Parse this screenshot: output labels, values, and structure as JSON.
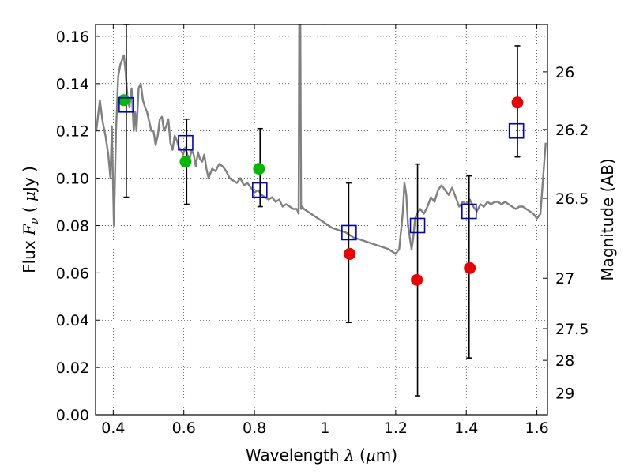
{
  "chart_data": {
    "type": "scatter",
    "xlabel_parts": [
      "Wavelength  ",
      "λ",
      " (",
      "μ",
      "m)"
    ],
    "ylabel_parts": [
      "Flux  ",
      "F",
      "ν",
      "  ( ",
      "μ",
      "Jy )"
    ],
    "y2label": "Magnitude (AB)",
    "xlim": [
      0.35,
      1.63
    ],
    "ylim": [
      0.0,
      0.165
    ],
    "x_ticks": [
      0.4,
      0.6,
      0.8,
      1.0,
      1.2,
      1.4,
      1.6
    ],
    "x_tick_labels": [
      "0.4",
      "0.6",
      "0.8",
      "1",
      "1.2",
      "1.4",
      "1.6"
    ],
    "y_ticks": [
      0.0,
      0.02,
      0.04,
      0.06,
      0.08,
      0.1,
      0.12,
      0.14,
      0.16
    ],
    "y_tick_labels": [
      "0.00",
      "0.02",
      "0.04",
      "0.06",
      "0.08",
      "0.10",
      "0.12",
      "0.14",
      "0.16"
    ],
    "y2_ticks": [
      {
        "label": "26",
        "flux": 0.145
      },
      {
        "label": "26.2",
        "flux": 0.1206
      },
      {
        "label": "26.5",
        "flux": 0.0915
      },
      {
        "label": "27",
        "flux": 0.0577
      },
      {
        "label": "27.5",
        "flux": 0.0364
      },
      {
        "label": "28",
        "flux": 0.023
      },
      {
        "label": "29",
        "flux": 0.0092
      }
    ],
    "grid": true,
    "colors": {
      "model": "#808080",
      "model_points": "#0000cc",
      "detection": "#00bb00",
      "nondetection": "#ee0000",
      "errorbar": "#000000"
    },
    "model_spectrum": {
      "x": [
        0.352,
        0.362,
        0.37,
        0.378,
        0.386,
        0.392,
        0.396,
        0.402,
        0.408,
        0.414,
        0.42,
        0.425,
        0.43,
        0.435,
        0.44,
        0.446,
        0.452,
        0.458,
        0.462,
        0.466,
        0.472,
        0.478,
        0.484,
        0.49,
        0.496,
        0.502,
        0.508,
        0.514,
        0.52,
        0.526,
        0.532,
        0.538,
        0.544,
        0.55,
        0.556,
        0.562,
        0.568,
        0.574,
        0.58,
        0.586,
        0.592,
        0.598,
        0.604,
        0.61,
        0.616,
        0.622,
        0.628,
        0.634,
        0.64,
        0.646,
        0.652,
        0.658,
        0.664,
        0.67,
        0.68,
        0.69,
        0.7,
        0.71,
        0.72,
        0.73,
        0.74,
        0.75,
        0.76,
        0.77,
        0.78,
        0.79,
        0.8,
        0.81,
        0.82,
        0.83,
        0.84,
        0.85,
        0.86,
        0.87,
        0.88,
        0.89,
        0.9,
        0.91,
        0.92,
        0.925,
        0.927,
        0.93,
        0.932,
        0.935,
        0.94,
        0.96,
        0.98,
        1.0,
        1.02,
        1.04,
        1.06,
        1.08,
        1.1,
        1.12,
        1.14,
        1.16,
        1.18,
        1.2,
        1.21,
        1.22,
        1.225,
        1.23,
        1.235,
        1.24,
        1.245,
        1.25,
        1.255,
        1.26,
        1.27,
        1.28,
        1.29,
        1.3,
        1.31,
        1.32,
        1.33,
        1.34,
        1.35,
        1.36,
        1.37,
        1.38,
        1.39,
        1.4,
        1.41,
        1.42,
        1.43,
        1.44,
        1.45,
        1.46,
        1.47,
        1.48,
        1.49,
        1.5,
        1.51,
        1.52,
        1.53,
        1.54,
        1.55,
        1.56,
        1.57,
        1.58,
        1.59,
        1.6,
        1.61,
        1.615,
        1.62,
        1.625
      ],
      "y": [
        0.12,
        0.133,
        0.124,
        0.118,
        0.11,
        0.1,
        0.122,
        0.08,
        0.12,
        0.143,
        0.148,
        0.15,
        0.152,
        0.145,
        0.135,
        0.13,
        0.138,
        0.12,
        0.128,
        0.12,
        0.138,
        0.14,
        0.133,
        0.13,
        0.128,
        0.124,
        0.12,
        0.12,
        0.114,
        0.118,
        0.125,
        0.126,
        0.12,
        0.122,
        0.125,
        0.115,
        0.112,
        0.118,
        0.116,
        0.113,
        0.112,
        0.11,
        0.113,
        0.11,
        0.108,
        0.112,
        0.11,
        0.105,
        0.111,
        0.108,
        0.107,
        0.11,
        0.104,
        0.1,
        0.104,
        0.103,
        0.106,
        0.105,
        0.103,
        0.1,
        0.099,
        0.098,
        0.1,
        0.097,
        0.098,
        0.096,
        0.094,
        0.095,
        0.093,
        0.092,
        0.091,
        0.092,
        0.09,
        0.091,
        0.088,
        0.089,
        0.088,
        0.087,
        0.087,
        0.085,
        0.165,
        0.165,
        0.087,
        0.088,
        0.087,
        0.085,
        0.083,
        0.081,
        0.079,
        0.078,
        0.077,
        0.075,
        0.074,
        0.073,
        0.072,
        0.071,
        0.07,
        0.068,
        0.07,
        0.085,
        0.098,
        0.093,
        0.08,
        0.075,
        0.07,
        0.075,
        0.083,
        0.085,
        0.087,
        0.085,
        0.088,
        0.092,
        0.09,
        0.095,
        0.097,
        0.095,
        0.093,
        0.096,
        0.092,
        0.088,
        0.09,
        0.089,
        0.091,
        0.088,
        0.086,
        0.089,
        0.088,
        0.09,
        0.089,
        0.09,
        0.09,
        0.089,
        0.09,
        0.089,
        0.088,
        0.087,
        0.088,
        0.088,
        0.087,
        0.086,
        0.085,
        0.083,
        0.085,
        0.095,
        0.105,
        0.115
      ],
      "discontinuities": [
        [
          0.398,
          0.398
        ]
      ]
    },
    "detections": {
      "x": [
        0.43,
        0.605,
        0.813
      ],
      "y": [
        0.133,
        0.107,
        0.104
      ]
    },
    "nondetections": {
      "x": [
        1.07,
        1.26,
        1.41,
        1.545
      ],
      "y": [
        0.068,
        0.057,
        0.062,
        0.132
      ]
    },
    "model_points": {
      "x": [
        0.437,
        0.605,
        0.815,
        1.068,
        1.262,
        1.408,
        1.542
      ],
      "y": [
        0.131,
        0.115,
        0.095,
        0.077,
        0.08,
        0.086,
        0.12
      ]
    },
    "errorbars": [
      {
        "x": 0.437,
        "low": 0.092,
        "high": 0.165
      },
      {
        "x": 0.608,
        "low": 0.089,
        "high": 0.125
      },
      {
        "x": 0.816,
        "low": 0.088,
        "high": 0.121
      },
      {
        "x": 1.067,
        "low": 0.039,
        "high": 0.098
      },
      {
        "x": 1.262,
        "low": 0.008,
        "high": 0.106
      },
      {
        "x": 1.408,
        "low": 0.024,
        "high": 0.101
      },
      {
        "x": 1.545,
        "low": 0.109,
        "high": 0.156
      }
    ]
  }
}
